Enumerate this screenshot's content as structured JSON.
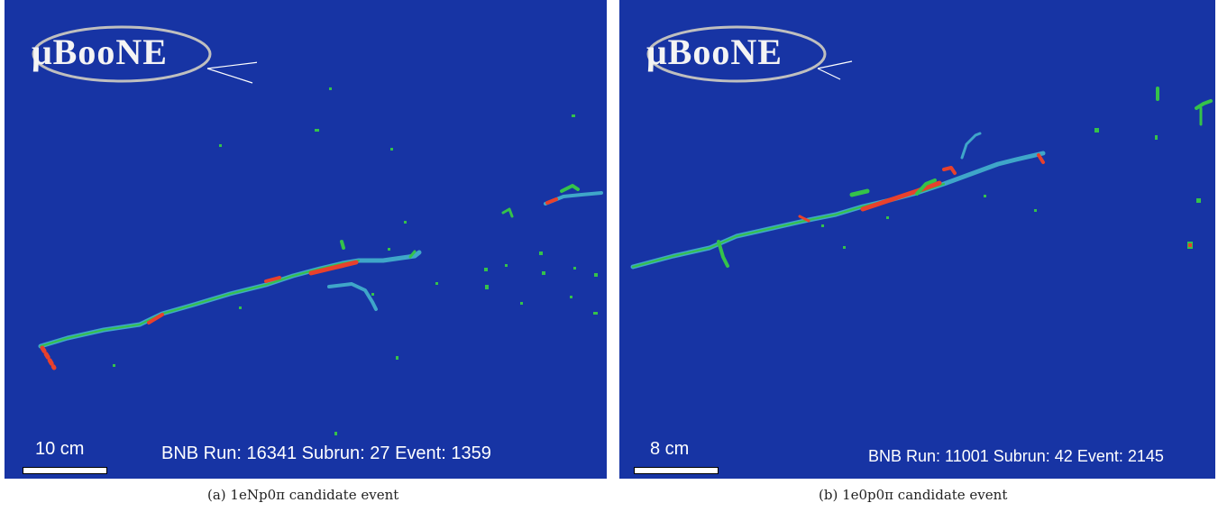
{
  "colors": {
    "background": "#1734a4",
    "track_low": "#3fa6c9",
    "track_mid": "#35c24a",
    "track_high": "#e8412c"
  },
  "panels": [
    {
      "logo": "μBooNE",
      "scale_label": "10 cm",
      "event_info": "BNB Run: 16341 Subrun: 27 Event: 1359",
      "caption": "(a) 1eNp0π candidate event"
    },
    {
      "logo": "μBooNE",
      "scale_label": "8 cm",
      "event_info": "BNB Run: 11001 Subrun: 42 Event: 2145",
      "caption": "(b) 1e0p0π candidate event"
    }
  ]
}
